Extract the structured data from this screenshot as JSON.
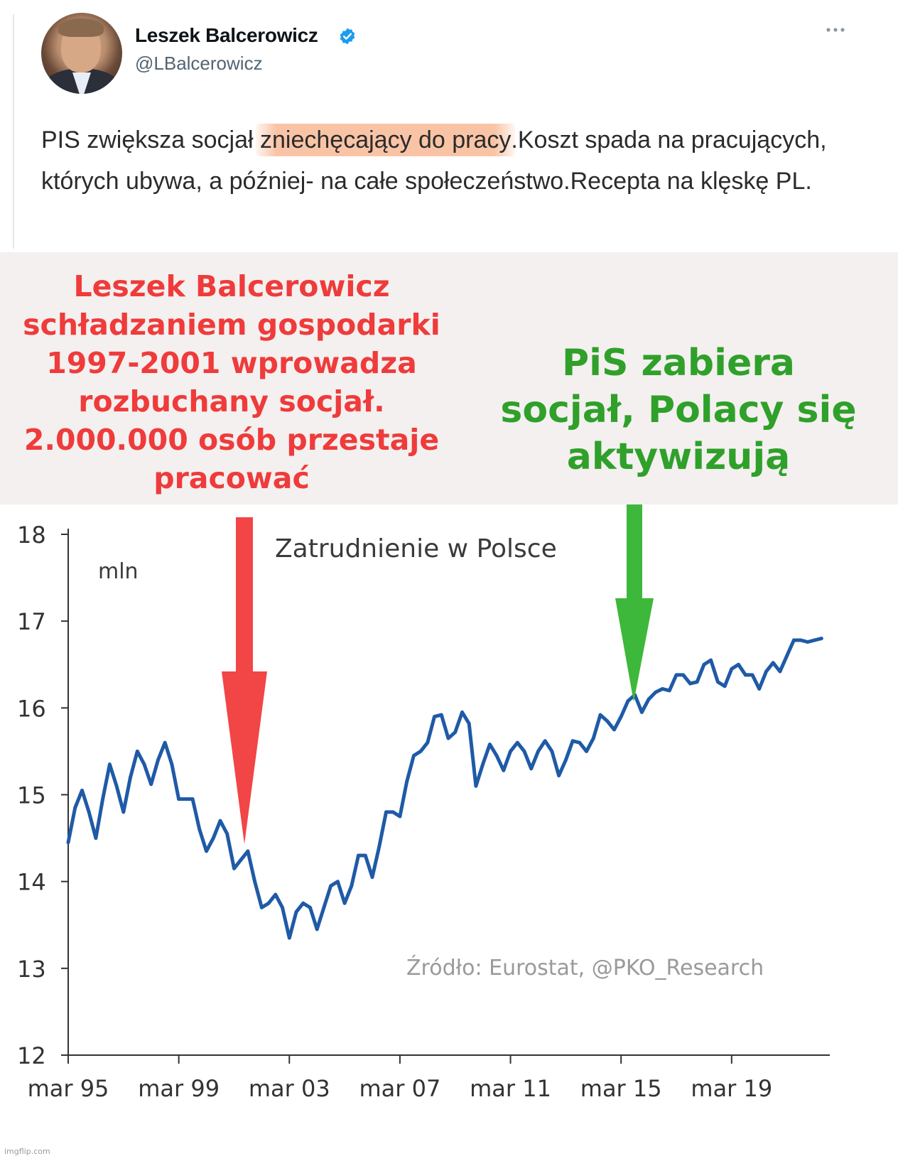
{
  "tweet": {
    "display_name": "Leszek Balcerowicz",
    "handle": "@LBalcerowicz",
    "text_before": "PIS zwiększa socjał ",
    "text_highlight": "zniechęcający do pracy",
    "text_after": ".Koszt spada na pracujących, których ubywa, a później- na całe społeczeństwo.Recepta na klęskę PL.",
    "verified_icon": "verified-badge-icon",
    "menu_icon": "more-dots-icon",
    "colors": {
      "name": "#0f1419",
      "handle": "#536471",
      "verified": "#1d9bf0",
      "highlight": "#f8ba96"
    }
  },
  "meme": {
    "left_caption": "Leszek Balcerowicz schładzaniem gospodarki 1997-2001 wprowadza rozbuchany socjał. 2.000.000 osób przestaje pracować",
    "right_caption": "PiS zabiera socjał, Polacy się aktywizują",
    "left_arrow_color": "#f24545",
    "right_arrow_color": "#3db83a",
    "left_arrow_points_to": "2001-03",
    "right_arrow_points_to": "2015-09"
  },
  "watermark": "imgflip.com",
  "chart_data": {
    "type": "line",
    "title": "Zatrudnienie w Polsce",
    "ylabel": "mln",
    "source": "Źródło: Eurostat, @PKO_Research",
    "ylim": [
      12,
      18
    ],
    "yticks": [
      12,
      13,
      14,
      15,
      16,
      17,
      18
    ],
    "xlim": [
      "1995-03",
      "2022-09"
    ],
    "xticks": [
      {
        "x": "1995-03",
        "label": "mar 95"
      },
      {
        "x": "1999-03",
        "label": "mar 99"
      },
      {
        "x": "2003-03",
        "label": "mar 03"
      },
      {
        "x": "2007-03",
        "label": "mar 07"
      },
      {
        "x": "2011-03",
        "label": "mar 11"
      },
      {
        "x": "2015-03",
        "label": "mar 15"
      },
      {
        "x": "2019-03",
        "label": "mar 19"
      }
    ],
    "line_color": "#1f5aa6",
    "grid": false,
    "series": [
      {
        "values": [
          [
            "1995-03",
            14.45
          ],
          [
            "1995-06",
            14.85
          ],
          [
            "1995-09",
            15.05
          ],
          [
            "1995-12",
            14.8
          ],
          [
            "1996-03",
            14.5
          ],
          [
            "1996-06",
            14.95
          ],
          [
            "1996-09",
            15.35
          ],
          [
            "1996-12",
            15.1
          ],
          [
            "1997-03",
            14.8
          ],
          [
            "1997-06",
            15.2
          ],
          [
            "1997-09",
            15.5
          ],
          [
            "1997-12",
            15.35
          ],
          [
            "1998-03",
            15.12
          ],
          [
            "1998-06",
            15.4
          ],
          [
            "1998-09",
            15.6
          ],
          [
            "1998-12",
            15.35
          ],
          [
            "1999-03",
            14.95
          ],
          [
            "1999-06",
            14.95
          ],
          [
            "1999-09",
            14.95
          ],
          [
            "1999-12",
            14.6
          ],
          [
            "2000-03",
            14.35
          ],
          [
            "2000-06",
            14.5
          ],
          [
            "2000-09",
            14.7
          ],
          [
            "2000-12",
            14.55
          ],
          [
            "2001-03",
            14.15
          ],
          [
            "2001-06",
            14.25
          ],
          [
            "2001-09",
            14.35
          ],
          [
            "2001-12",
            14.0
          ],
          [
            "2002-03",
            13.7
          ],
          [
            "2002-06",
            13.75
          ],
          [
            "2002-09",
            13.85
          ],
          [
            "2002-12",
            13.7
          ],
          [
            "2003-03",
            13.35
          ],
          [
            "2003-06",
            13.65
          ],
          [
            "2003-09",
            13.75
          ],
          [
            "2003-12",
            13.7
          ],
          [
            "2004-03",
            13.45
          ],
          [
            "2004-06",
            13.7
          ],
          [
            "2004-09",
            13.95
          ],
          [
            "2004-12",
            14.0
          ],
          [
            "2005-03",
            13.75
          ],
          [
            "2005-06",
            13.95
          ],
          [
            "2005-09",
            14.3
          ],
          [
            "2005-12",
            14.3
          ],
          [
            "2006-03",
            14.05
          ],
          [
            "2006-06",
            14.4
          ],
          [
            "2006-09",
            14.8
          ],
          [
            "2006-12",
            14.8
          ],
          [
            "2007-03",
            14.75
          ],
          [
            "2007-06",
            15.15
          ],
          [
            "2007-09",
            15.45
          ],
          [
            "2007-12",
            15.5
          ],
          [
            "2008-03",
            15.6
          ],
          [
            "2008-06",
            15.9
          ],
          [
            "2008-09",
            15.92
          ],
          [
            "2008-12",
            15.65
          ],
          [
            "2009-03",
            15.72
          ],
          [
            "2009-06",
            15.95
          ],
          [
            "2009-09",
            15.82
          ],
          [
            "2009-12",
            15.1
          ],
          [
            "2010-03",
            15.35
          ],
          [
            "2010-06",
            15.58
          ],
          [
            "2010-09",
            15.45
          ],
          [
            "2010-12",
            15.28
          ],
          [
            "2011-03",
            15.5
          ],
          [
            "2011-06",
            15.6
          ],
          [
            "2011-09",
            15.5
          ],
          [
            "2011-12",
            15.3
          ],
          [
            "2012-03",
            15.5
          ],
          [
            "2012-06",
            15.62
          ],
          [
            "2012-09",
            15.5
          ],
          [
            "2012-12",
            15.22
          ],
          [
            "2013-03",
            15.4
          ],
          [
            "2013-06",
            15.62
          ],
          [
            "2013-09",
            15.6
          ],
          [
            "2013-12",
            15.5
          ],
          [
            "2014-03",
            15.65
          ],
          [
            "2014-06",
            15.92
          ],
          [
            "2014-09",
            15.85
          ],
          [
            "2014-12",
            15.75
          ],
          [
            "2015-03",
            15.9
          ],
          [
            "2015-06",
            16.08
          ],
          [
            "2015-09",
            16.15
          ],
          [
            "2015-12",
            15.95
          ],
          [
            "2016-03",
            16.1
          ],
          [
            "2016-06",
            16.18
          ],
          [
            "2016-09",
            16.22
          ],
          [
            "2016-12",
            16.2
          ],
          [
            "2017-03",
            16.38
          ],
          [
            "2017-06",
            16.38
          ],
          [
            "2017-09",
            16.28
          ],
          [
            "2017-12",
            16.3
          ],
          [
            "2018-03",
            16.5
          ],
          [
            "2018-06",
            16.55
          ],
          [
            "2018-09",
            16.3
          ],
          [
            "2018-12",
            16.25
          ],
          [
            "2019-03",
            16.45
          ],
          [
            "2019-06",
            16.5
          ],
          [
            "2019-09",
            16.38
          ],
          [
            "2019-12",
            16.38
          ],
          [
            "2020-03",
            16.22
          ],
          [
            "2020-06",
            16.42
          ],
          [
            "2020-09",
            16.52
          ],
          [
            "2020-12",
            16.42
          ],
          [
            "2021-03",
            16.6
          ],
          [
            "2021-06",
            16.78
          ],
          [
            "2021-09",
            16.78
          ],
          [
            "2021-12",
            16.76
          ],
          [
            "2022-03",
            16.78
          ],
          [
            "2022-06",
            16.8
          ]
        ]
      }
    ]
  }
}
